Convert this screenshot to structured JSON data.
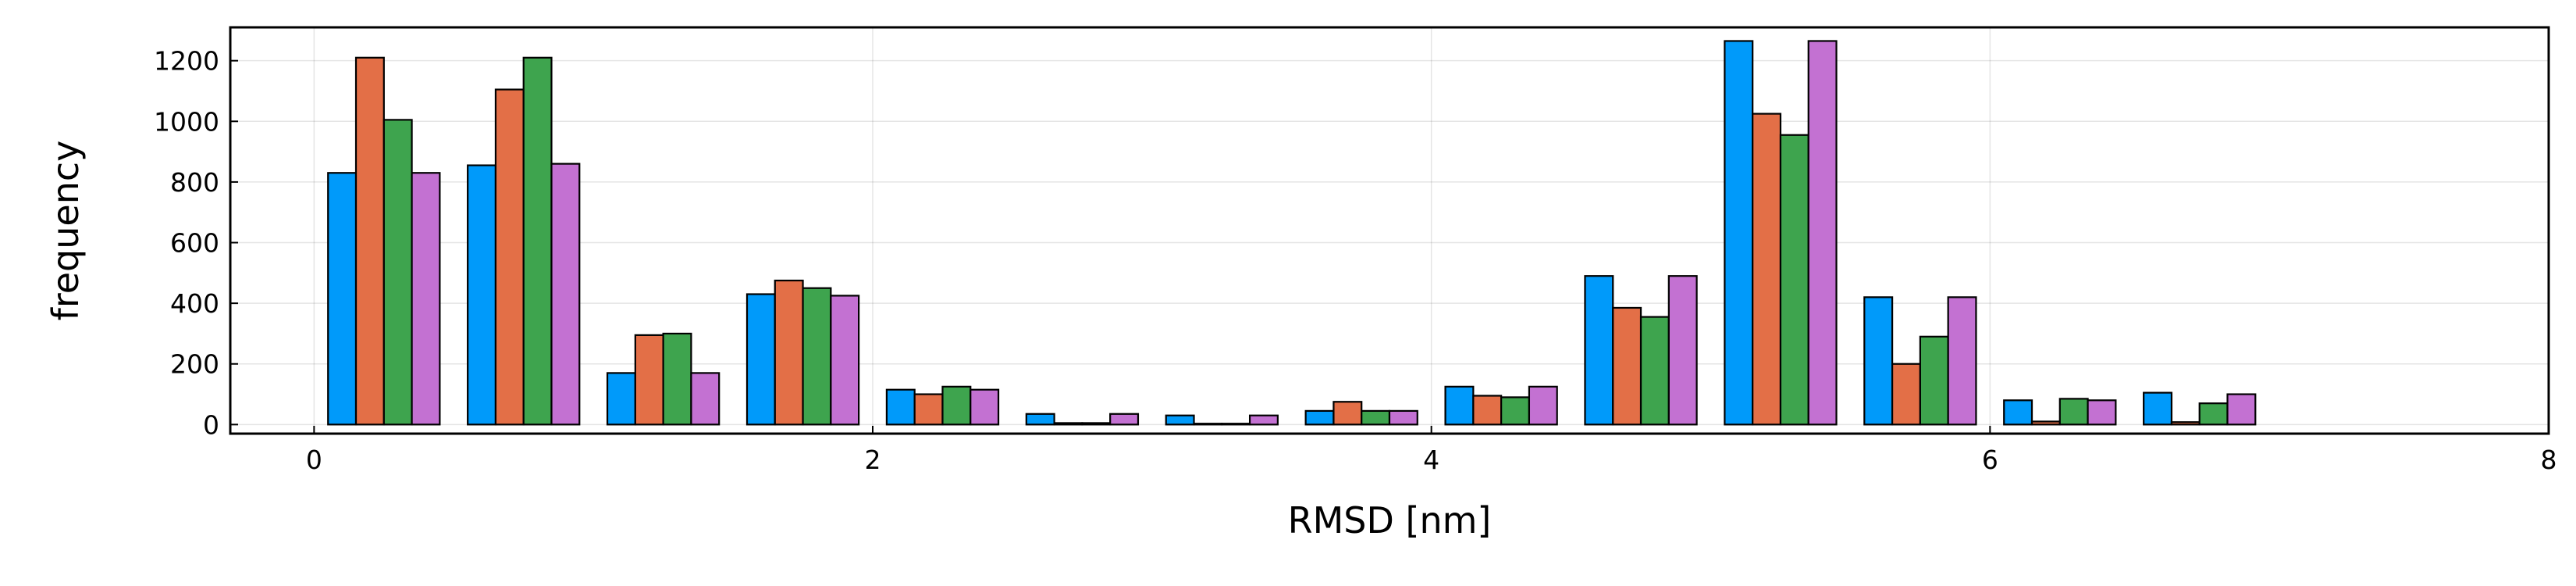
{
  "chart_data": {
    "type": "bar",
    "title": "",
    "xlabel": "RMSD [nm]",
    "ylabel": "frequency",
    "xlim": [
      -0.3,
      8
    ],
    "ylim": [
      -30,
      1310
    ],
    "xticks": [
      0,
      2,
      4,
      6,
      8
    ],
    "yticks": [
      0,
      200,
      400,
      600,
      800,
      1000,
      1200
    ],
    "grid": true,
    "legend": "none",
    "bin_edges": [
      0.05,
      0.55,
      1.05,
      1.55,
      2.05,
      2.55,
      3.05,
      3.55,
      4.05,
      4.55,
      5.05,
      5.55,
      6.05,
      6.55
    ],
    "bin_width": 0.5,
    "series": [
      {
        "color": "#009AFA",
        "values": [
          830,
          855,
          170,
          430,
          115,
          35,
          30,
          45,
          125,
          490,
          1265,
          420,
          80,
          105
        ]
      },
      {
        "color": "#E36F47",
        "values": [
          1210,
          1105,
          295,
          475,
          100,
          5,
          3,
          75,
          95,
          385,
          1025,
          200,
          10,
          8
        ]
      },
      {
        "color": "#3EA44E",
        "values": [
          1005,
          1210,
          300,
          450,
          125,
          5,
          3,
          45,
          90,
          355,
          955,
          290,
          85,
          70
        ]
      },
      {
        "color": "#C371D2",
        "values": [
          830,
          860,
          170,
          425,
          115,
          35,
          30,
          45,
          125,
          490,
          1265,
          420,
          80,
          100
        ]
      }
    ]
  }
}
